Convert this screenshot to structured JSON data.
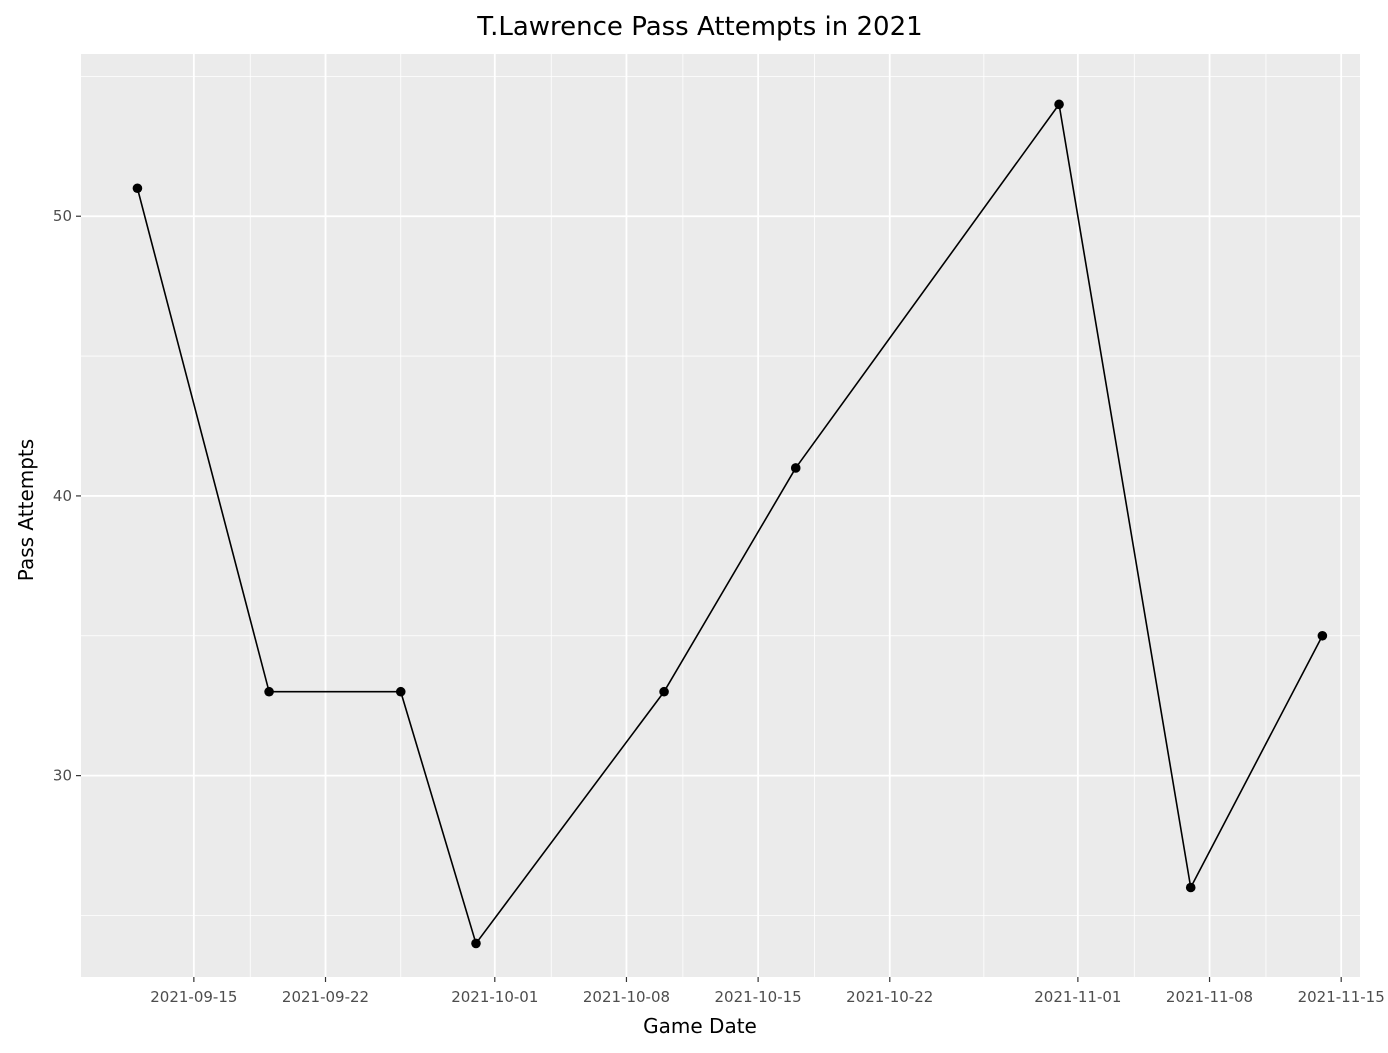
{
  "chart_data": {
    "type": "line",
    "title": "T.Lawrence Pass Attempts in 2021",
    "xlabel": "Game Date",
    "ylabel": "Pass Attempts",
    "x": [
      "2021-09-12",
      "2021-09-19",
      "2021-09-26",
      "2021-09-30",
      "2021-10-10",
      "2021-10-17",
      "2021-10-31",
      "2021-11-07",
      "2021-11-14"
    ],
    "series": [
      {
        "values": [
          51,
          33,
          33,
          24,
          33,
          41,
          54,
          26,
          35
        ]
      }
    ],
    "xlim": [
      "2021-09-09",
      "2021-11-16"
    ],
    "ylim": [
      22.8,
      55.8
    ],
    "x_ticks": [
      "2021-09-15",
      "2021-09-22",
      "2021-10-01",
      "2021-10-08",
      "2021-10-15",
      "2021-10-22",
      "2021-11-01",
      "2021-11-08",
      "2021-11-15"
    ],
    "x_minor_ticks": [
      "2021-09-18",
      "2021-09-26",
      "2021-10-04",
      "2021-10-11",
      "2021-10-18",
      "2021-10-27",
      "2021-11-04",
      "2021-11-11"
    ],
    "y_ticks": [
      30,
      40,
      50
    ],
    "y_minor_ticks": [
      25,
      35,
      45,
      55
    ],
    "grid": true,
    "legend": "none",
    "colors": {
      "panel": "#ebebeb",
      "grid": "#ffffff",
      "line": "#000000",
      "point": "#000000"
    }
  }
}
